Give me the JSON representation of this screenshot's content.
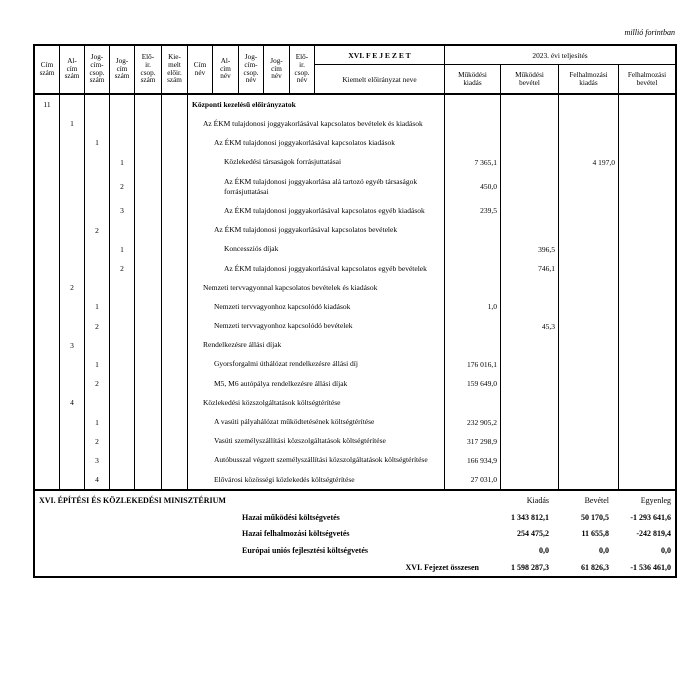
{
  "unit_note": "millió forintban",
  "table": {
    "header": {
      "num_cols": [
        "Cím\nszám",
        "Al-\ncím\nszám",
        "Jog-\ncím-\ncsop.\nszám",
        "Jog-\ncím\nszám",
        "Elő-\nir.\ncsop.\nszám",
        "Kie-\nmelt\nelőir.\nszám"
      ],
      "name_cols": [
        "Cím\nnév",
        "Al-\ncím\nnév",
        "Jog-\ncím-\ncsop.\nnév",
        "Jog-\ncím\nnév",
        "Elő-\nir.\ncsop.\nnév"
      ],
      "chapter_title": "XVI. F E J E Z E T",
      "kiemelt_label": "Kiemelt előirányzat neve",
      "year_label": "2023. évi teljesítés",
      "value_cols": [
        "Működési\nkiadás",
        "Működési\nbevétel",
        "Felhalmozási\nkiadás",
        "Felhalmozási\nbevétel"
      ]
    },
    "rows": [
      {
        "c1": "11",
        "name": "Központi kezelésű előirányzatok",
        "level": 0,
        "bold": true
      },
      {
        "c2": "1",
        "name": "Az ÉKM tulajdonosi joggyakorlásával kapcsolatos bevételek és kiadások",
        "level": 1
      },
      {
        "c3": "1",
        "name": "Az ÉKM tulajdonosi joggyakorlásával kapcsolatos kiadások",
        "level": 2
      },
      {
        "c4": "1",
        "name": "Közlekedési társaságok forrásjuttatásai",
        "level": 3,
        "v1": "7 365,1",
        "v3": "4 197,0"
      },
      {
        "c4": "2",
        "name": "Az ÉKM tulajdonosi joggyakorlása alá tartozó egyéb társaságok forrásjuttatásai",
        "level": 3,
        "v1": "450,0",
        "tall": true
      },
      {
        "c4": "3",
        "name": "Az ÉKM tulajdonosi joggyakorlásával kapcsolatos egyéb kiadások",
        "level": 3,
        "v1": "239,5"
      },
      {
        "c3": "2",
        "name": "Az ÉKM tulajdonosi joggyakorlásával kapcsolatos bevételek",
        "level": 2
      },
      {
        "c4": "1",
        "name": "Koncessziós díjak",
        "level": 3,
        "v2": "396,5"
      },
      {
        "c4": "2",
        "name": "Az ÉKM tulajdonosi joggyakorlásával kapcsolatos egyéb bevételek",
        "level": 3,
        "v2": "746,1"
      },
      {
        "c2": "2",
        "name": "Nemzeti tervvagyonnal kapcsolatos bevételek és kiadások",
        "level": 1
      },
      {
        "c3": "1",
        "name": "Nemzeti tervvagyonhoz kapcsolódó kiadások",
        "level": 2,
        "v1": "1,0"
      },
      {
        "c3": "2",
        "name": "Nemzeti tervvagyonhoz kapcsolódó bevételek",
        "level": 2,
        "v2": "45,3"
      },
      {
        "c2": "3",
        "name": "Rendelkezésre állási díjak",
        "level": 1
      },
      {
        "c3": "1",
        "name": "Gyorsforgalmi úthálózat rendelkezésre állási díj",
        "level": 2,
        "v1": "176 016,1"
      },
      {
        "c3": "2",
        "name": "M5, M6 autópálya rendelkezésre állási díjak",
        "level": 2,
        "v1": "159 649,0"
      },
      {
        "c2": "4",
        "name": "Közlekedési közszolgáltatások költségtérítése",
        "level": 1
      },
      {
        "c3": "1",
        "name": "A vasúti pályahálózat működtetésének költségtérítése",
        "level": 2,
        "v1": "232 905,2"
      },
      {
        "c3": "2",
        "name": "Vasúti személyszállítási közszolgáltatások költségtérítése",
        "level": 2,
        "v1": "317 298,9"
      },
      {
        "c3": "3",
        "name": "Autóbusszal végzett személyszállítási közszolgáltatások költségtérítése",
        "level": 2,
        "v1": "166 934,9"
      },
      {
        "c3": "4",
        "name": "Elővárosi közösségi közlekedés költségtérítése",
        "level": 2,
        "v1": "27 031,0"
      }
    ],
    "footer": {
      "ministry": "XVI. ÉPÍTÉSI ÉS KÖZLEKEDÉSI MINISZTÉRIUM",
      "col_labels": [
        "Kiadás",
        "Bevétel",
        "Egyenleg"
      ],
      "rows": [
        {
          "label": "Hazai működési költségvetés",
          "kiadas": "1 343 812,1",
          "bevetel": "50 170,5",
          "egyenleg": "-1 293 641,6"
        },
        {
          "label": "Hazai felhalmozási költségvetés",
          "kiadas": "254 475,2",
          "bevetel": "11 655,8",
          "egyenleg": "-242 819,4"
        },
        {
          "label": "Európai uniós fejlesztési költségvetés",
          "kiadas": "0,0",
          "bevetel": "0,0",
          "egyenleg": "0,0"
        },
        {
          "label": "XVI. Fejezet összesen",
          "kiadas": "1 598 287,3",
          "bevetel": "61 826,3",
          "egyenleg": "-1 536 461,0"
        }
      ]
    }
  }
}
